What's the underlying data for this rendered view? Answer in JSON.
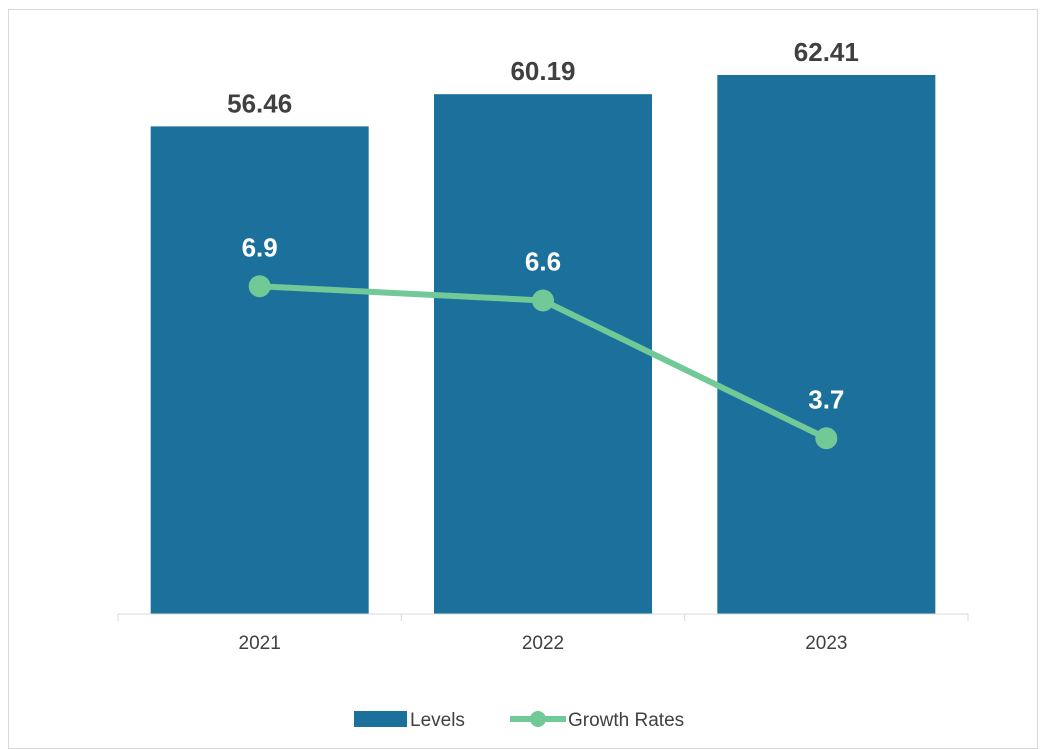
{
  "chart_data": {
    "type": "bar",
    "categories": [
      "2021",
      "2022",
      "2023"
    ],
    "series": [
      {
        "name": "Levels",
        "type": "bar",
        "values": [
          56.46,
          60.19,
          62.41
        ],
        "labels": [
          "56.46",
          "60.19",
          "62.41"
        ],
        "color": "#1b709c"
      },
      {
        "name": "Growth Rates",
        "type": "line",
        "values": [
          6.9,
          6.6,
          3.7
        ],
        "labels": [
          "6.9",
          "6.6",
          "3.7"
        ],
        "color": "#70c997"
      }
    ],
    "ylim": [
      0,
      66
    ],
    "line_ylim": [
      0,
      12
    ],
    "grid": false,
    "legend_position": "bottom",
    "label_color_bar": "#404040",
    "label_color_line": "#ffffff",
    "axis_color": "#d9d9d9",
    "tick_color": "#404040"
  }
}
